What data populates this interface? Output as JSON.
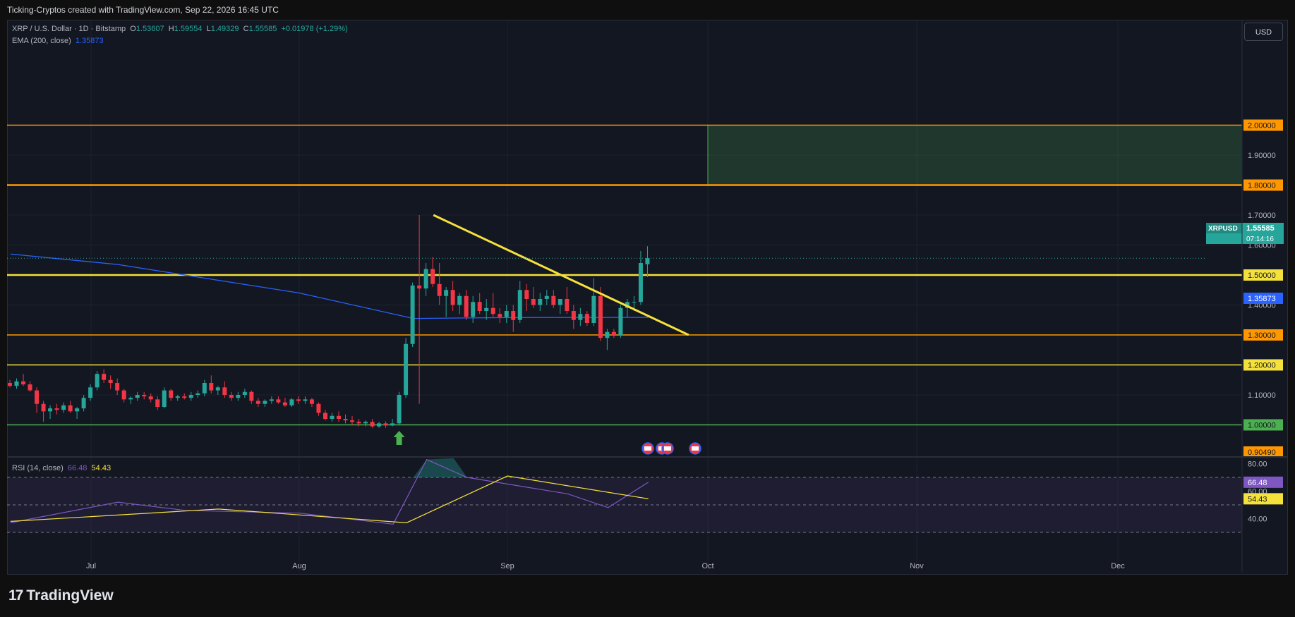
{
  "header": {
    "attribution": "Ticking-Cryptos created with TradingView.com, Sep 22, 2026 16:45 UTC"
  },
  "legend": {
    "symbol": "XRP / U.S. Dollar · 1D · Bitstamp",
    "o_label": "O",
    "o": "1.53607",
    "h_label": "H",
    "h": "1.59554",
    "l_label": "L",
    "l": "1.49329",
    "c_label": "C",
    "c": "1.55585",
    "change": "+0.01978 (+1.29%)",
    "ema_label": "EMA (200, close)",
    "ema_value": "1.35873",
    "rsi_label": "RSI (14, close)",
    "rsi_value": "66.48",
    "rsi_ma_value": "54.43"
  },
  "currency_button": "USD",
  "price_tag": {
    "symbol": "XRPUSD",
    "value": "1.55585",
    "countdown": "07:14:16"
  },
  "footer": {
    "logo_mark": "17",
    "brand": "TradingView"
  },
  "colors": {
    "up": "#26a69a",
    "down": "#f23645",
    "ema": "#2962ff",
    "orange": "#ff9800",
    "yellow": "#f5e13c",
    "green_line": "#4caf50",
    "rsi": "#7e57c2"
  },
  "chart_data": {
    "type": "candlestick",
    "y_axis_labels": [
      "2.00000",
      "1.90000",
      "1.80000",
      "1.70000",
      "1.60000",
      "1.50000",
      "1.40000",
      "1.30000",
      "1.20000",
      "1.10000",
      "1.00000",
      "0.90490"
    ],
    "x_axis_labels": [
      "Jul",
      "Aug",
      "Sep",
      "Oct",
      "Nov",
      "Dec"
    ],
    "ylim": [
      0.905,
      2.1
    ],
    "horizontal_levels": [
      {
        "price": 2.0,
        "label": "2.00000",
        "color": "orange"
      },
      {
        "price": 1.8,
        "label": "1.80000",
        "color": "orange"
      },
      {
        "price": 1.5,
        "label": "1.50000",
        "color": "yellow"
      },
      {
        "price": 1.3,
        "label": "1.30000",
        "color": "orange"
      },
      {
        "price": 1.2,
        "label": "1.20000",
        "color": "yellow"
      },
      {
        "price": 1.0,
        "label": "1.00000",
        "color": "green"
      }
    ],
    "target_zone": {
      "from_date": "Oct 1",
      "to_date": "Dec",
      "low": 1.8,
      "high": 2.0
    },
    "trendline": {
      "start": {
        "date": "Aug 21",
        "price": 1.7
      },
      "end": {
        "date": "Sep 28",
        "price": 1.3
      }
    },
    "ema_200": [
      {
        "date": "Jun 19",
        "value": 1.57
      },
      {
        "date": "Jul 5",
        "value": 1.535
      },
      {
        "date": "Aug 1",
        "value": 1.44
      },
      {
        "date": "Aug 18",
        "value": 1.355
      },
      {
        "date": "Sep 1",
        "value": 1.358
      },
      {
        "date": "Sep 22",
        "value": 1.3587
      }
    ],
    "candles": [
      [
        1.14,
        1.15,
        1.125,
        1.13
      ],
      [
        1.13,
        1.155,
        1.12,
        1.145
      ],
      [
        1.145,
        1.17,
        1.13,
        1.135
      ],
      [
        1.135,
        1.145,
        1.11,
        1.115
      ],
      [
        1.115,
        1.125,
        1.04,
        1.07
      ],
      [
        1.07,
        1.08,
        1.01,
        1.045
      ],
      [
        1.045,
        1.065,
        1.02,
        1.055
      ],
      [
        1.055,
        1.07,
        1.035,
        1.05
      ],
      [
        1.05,
        1.075,
        1.04,
        1.065
      ],
      [
        1.065,
        1.08,
        1.04,
        1.045
      ],
      [
        1.045,
        1.06,
        1.02,
        1.055
      ],
      [
        1.055,
        1.1,
        1.045,
        1.09
      ],
      [
        1.09,
        1.135,
        1.08,
        1.125
      ],
      [
        1.125,
        1.18,
        1.115,
        1.17
      ],
      [
        1.17,
        1.185,
        1.14,
        1.15
      ],
      [
        1.15,
        1.165,
        1.12,
        1.14
      ],
      [
        1.14,
        1.155,
        1.1,
        1.115
      ],
      [
        1.115,
        1.12,
        1.075,
        1.085
      ],
      [
        1.085,
        1.095,
        1.07,
        1.09
      ],
      [
        1.09,
        1.11,
        1.08,
        1.1
      ],
      [
        1.1,
        1.11,
        1.085,
        1.095
      ],
      [
        1.095,
        1.105,
        1.075,
        1.085
      ],
      [
        1.085,
        1.095,
        1.05,
        1.06
      ],
      [
        1.06,
        1.125,
        1.055,
        1.115
      ],
      [
        1.115,
        1.12,
        1.08,
        1.09
      ],
      [
        1.09,
        1.1,
        1.08,
        1.095
      ],
      [
        1.095,
        1.105,
        1.085,
        1.09
      ],
      [
        1.09,
        1.11,
        1.08,
        1.1
      ],
      [
        1.1,
        1.115,
        1.09,
        1.105
      ],
      [
        1.105,
        1.15,
        1.095,
        1.14
      ],
      [
        1.14,
        1.165,
        1.105,
        1.115
      ],
      [
        1.115,
        1.13,
        1.1,
        1.125
      ],
      [
        1.125,
        1.145,
        1.09,
        1.1
      ],
      [
        1.1,
        1.11,
        1.08,
        1.09
      ],
      [
        1.09,
        1.11,
        1.08,
        1.1
      ],
      [
        1.1,
        1.12,
        1.09,
        1.11
      ],
      [
        1.11,
        1.115,
        1.07,
        1.08
      ],
      [
        1.08,
        1.09,
        1.06,
        1.07
      ],
      [
        1.07,
        1.085,
        1.06,
        1.08
      ],
      [
        1.08,
        1.095,
        1.07,
        1.085
      ],
      [
        1.085,
        1.095,
        1.07,
        1.075
      ],
      [
        1.075,
        1.09,
        1.06,
        1.065
      ],
      [
        1.065,
        1.09,
        1.06,
        1.085
      ],
      [
        1.085,
        1.095,
        1.07,
        1.08
      ],
      [
        1.08,
        1.095,
        1.07,
        1.085
      ],
      [
        1.085,
        1.09,
        1.06,
        1.07
      ],
      [
        1.07,
        1.075,
        1.03,
        1.04
      ],
      [
        1.04,
        1.05,
        1.015,
        1.02
      ],
      [
        1.02,
        1.04,
        1.01,
        1.03
      ],
      [
        1.03,
        1.045,
        1.01,
        1.02
      ],
      [
        1.02,
        1.035,
        1.005,
        1.015
      ],
      [
        1.015,
        1.03,
        1.0,
        1.01
      ],
      [
        1.01,
        1.02,
        0.995,
        1.005
      ],
      [
        1.005,
        1.015,
        0.995,
        1.01
      ],
      [
        1.01,
        1.02,
        0.99,
        0.995
      ],
      [
        0.995,
        1.01,
        0.99,
        1.005
      ],
      [
        1.005,
        1.012,
        0.99,
        0.998
      ],
      [
        0.998,
        1.02,
        0.995,
        1.005
      ],
      [
        1.005,
        1.11,
        1.0,
        1.1
      ],
      [
        1.1,
        1.29,
        1.09,
        1.27
      ],
      [
        1.27,
        1.475,
        1.26,
        1.465
      ],
      [
        1.465,
        1.7,
        1.07,
        1.455
      ],
      [
        1.455,
        1.54,
        1.43,
        1.52
      ],
      [
        1.52,
        1.56,
        1.46,
        1.47
      ],
      [
        1.47,
        1.54,
        1.4,
        1.43
      ],
      [
        1.43,
        1.46,
        1.36,
        1.45
      ],
      [
        1.45,
        1.48,
        1.38,
        1.4
      ],
      [
        1.4,
        1.44,
        1.37,
        1.43
      ],
      [
        1.43,
        1.45,
        1.35,
        1.36
      ],
      [
        1.36,
        1.43,
        1.34,
        1.41
      ],
      [
        1.41,
        1.44,
        1.37,
        1.38
      ],
      [
        1.38,
        1.42,
        1.35,
        1.39
      ],
      [
        1.39,
        1.44,
        1.36,
        1.37
      ],
      [
        1.37,
        1.39,
        1.34,
        1.36
      ],
      [
        1.36,
        1.4,
        1.34,
        1.38
      ],
      [
        1.38,
        1.4,
        1.31,
        1.35
      ],
      [
        1.35,
        1.48,
        1.34,
        1.45
      ],
      [
        1.45,
        1.47,
        1.38,
        1.42
      ],
      [
        1.42,
        1.46,
        1.39,
        1.4
      ],
      [
        1.4,
        1.44,
        1.38,
        1.42
      ],
      [
        1.42,
        1.45,
        1.4,
        1.43
      ],
      [
        1.43,
        1.45,
        1.39,
        1.4
      ],
      [
        1.4,
        1.42,
        1.37,
        1.42
      ],
      [
        1.42,
        1.46,
        1.37,
        1.38
      ],
      [
        1.38,
        1.4,
        1.32,
        1.35
      ],
      [
        1.35,
        1.39,
        1.33,
        1.37
      ],
      [
        1.37,
        1.38,
        1.33,
        1.34
      ],
      [
        1.34,
        1.49,
        1.33,
        1.43
      ],
      [
        1.43,
        1.46,
        1.28,
        1.29
      ],
      [
        1.29,
        1.32,
        1.25,
        1.31
      ],
      [
        1.31,
        1.32,
        1.29,
        1.3
      ],
      [
        1.3,
        1.4,
        1.29,
        1.39
      ],
      [
        1.39,
        1.42,
        1.36,
        1.41
      ],
      [
        1.41,
        1.43,
        1.38,
        1.41
      ],
      [
        1.41,
        1.58,
        1.4,
        1.54
      ],
      [
        1.536,
        1.596,
        1.493,
        1.556
      ]
    ],
    "rsi_axis_labels": [
      "80.00",
      "60.00",
      "40.00"
    ],
    "rsi_bands": {
      "upper": 70,
      "middle": 50,
      "lower": 30
    },
    "rsi": [
      {
        "date": "Jun 19",
        "value": 37
      },
      {
        "date": "Jul 5",
        "value": 52
      },
      {
        "date": "Jul 15",
        "value": 46
      },
      {
        "date": "Aug 1",
        "value": 44
      },
      {
        "date": "Aug 15",
        "value": 36
      },
      {
        "date": "Aug 20",
        "value": 83
      },
      {
        "date": "Aug 26",
        "value": 70
      },
      {
        "date": "Sep 10",
        "value": 58
      },
      {
        "date": "Sep 16",
        "value": 48
      },
      {
        "date": "Sep 22",
        "value": 66.48
      }
    ],
    "rsi_ma": [
      {
        "date": "Jun 19",
        "value": 38
      },
      {
        "date": "Jul 20",
        "value": 47
      },
      {
        "date": "Aug 17",
        "value": 37
      },
      {
        "date": "Sep 1",
        "value": 71
      },
      {
        "date": "Sep 22",
        "value": 54.43
      }
    ]
  }
}
